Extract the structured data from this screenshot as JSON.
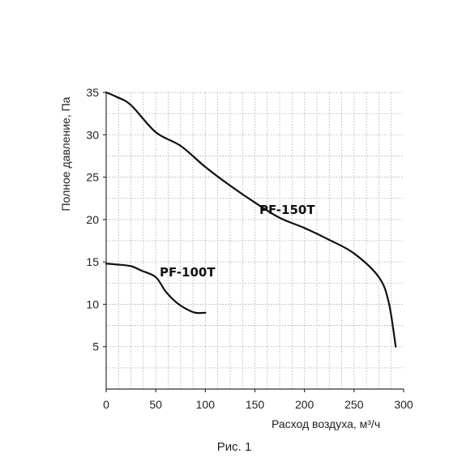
{
  "chart_data": {
    "type": "line",
    "title": "",
    "xlabel": "Расход воздуха, м³/ч",
    "ylabel": "Полное давление, Па",
    "xlim": [
      0,
      300
    ],
    "ylim": [
      0,
      35
    ],
    "x_ticks": [
      0,
      50,
      100,
      150,
      200,
      250,
      300
    ],
    "y_ticks": [
      5,
      10,
      15,
      20,
      25,
      30,
      35
    ],
    "grid": true,
    "series": [
      {
        "name": "PF-100T",
        "x": [
          0,
          10,
          25,
          35,
          50,
          60,
          70,
          80,
          90,
          100
        ],
        "y": [
          14.8,
          14.7,
          14.5,
          14.0,
          13.2,
          11.5,
          10.3,
          9.5,
          9.0,
          9.0
        ]
      },
      {
        "name": "PF-150T",
        "x": [
          0,
          10,
          25,
          50,
          75,
          100,
          125,
          150,
          175,
          200,
          225,
          250,
          275,
          285,
          292
        ],
        "y": [
          35.0,
          34.5,
          33.5,
          30.3,
          28.7,
          26.2,
          24.0,
          22.0,
          20.2,
          19.0,
          17.6,
          16.0,
          13.2,
          10.2,
          5.0
        ]
      }
    ],
    "caption": "Рис. 1"
  }
}
